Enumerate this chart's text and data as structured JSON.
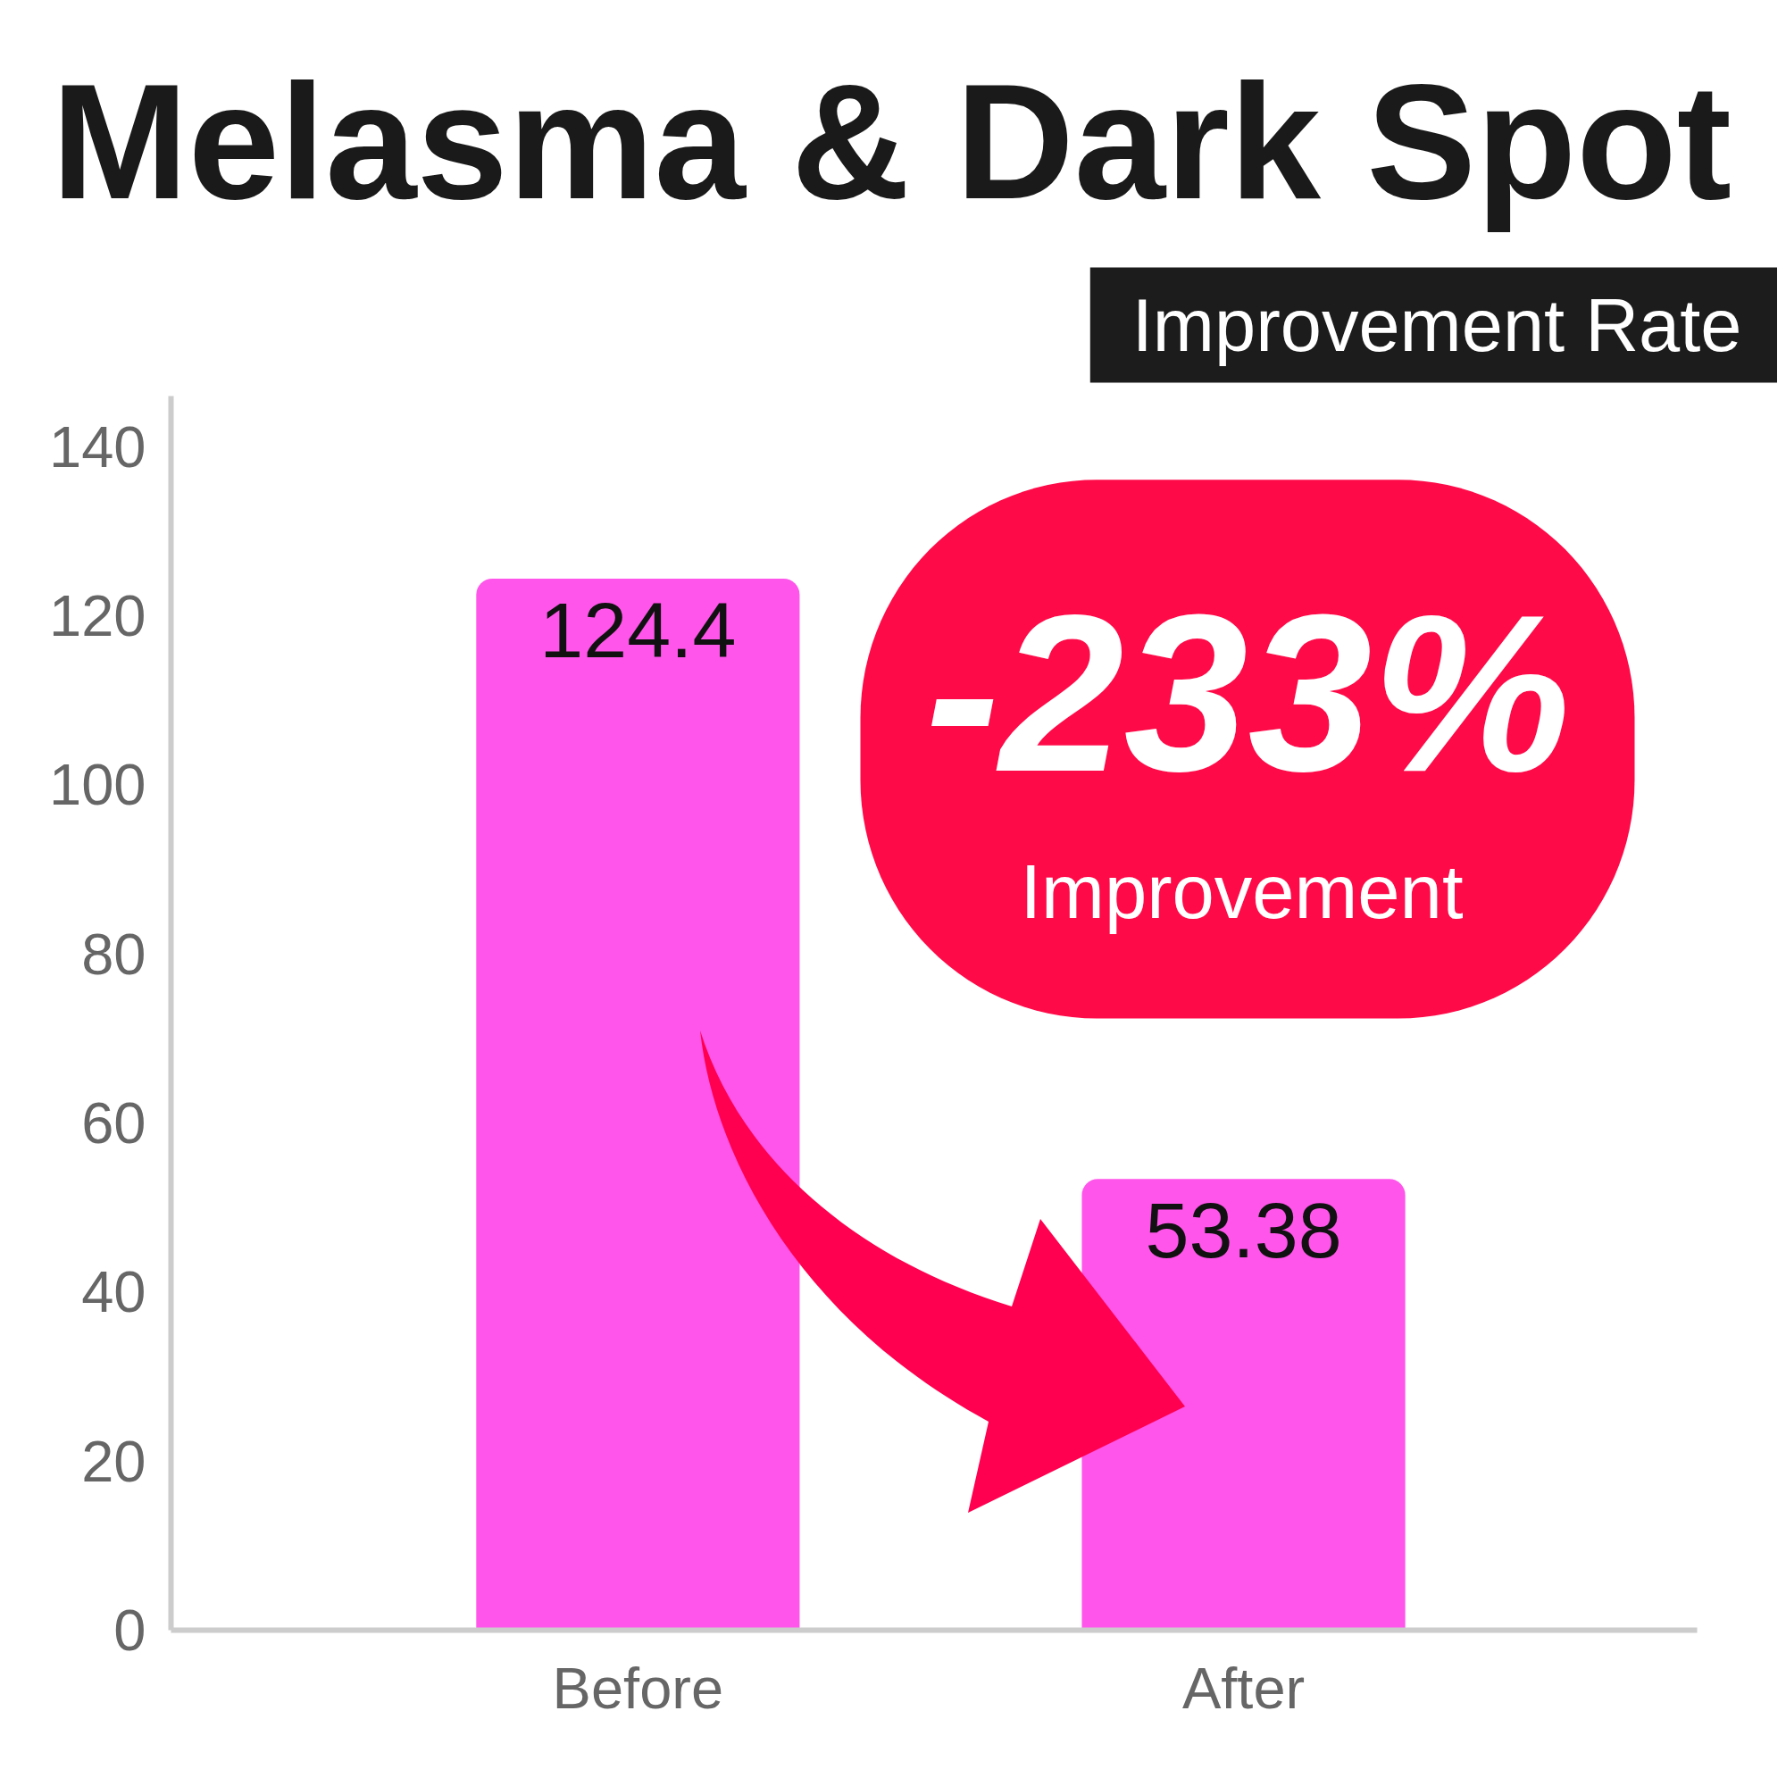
{
  "chart_data": {
    "type": "bar",
    "title": "Melasma & Dark Spot",
    "subtitle": "Improvement Rate",
    "categories": [
      "Before",
      "After"
    ],
    "values": [
      124.4,
      53.38
    ],
    "color": "#ff55ea",
    "ylim": [
      0,
      146
    ],
    "yticks": [
      0,
      20,
      40,
      60,
      80,
      100,
      120,
      140
    ],
    "data_labels": true,
    "annotations": [
      "-233%",
      "Improvement"
    ]
  }
}
